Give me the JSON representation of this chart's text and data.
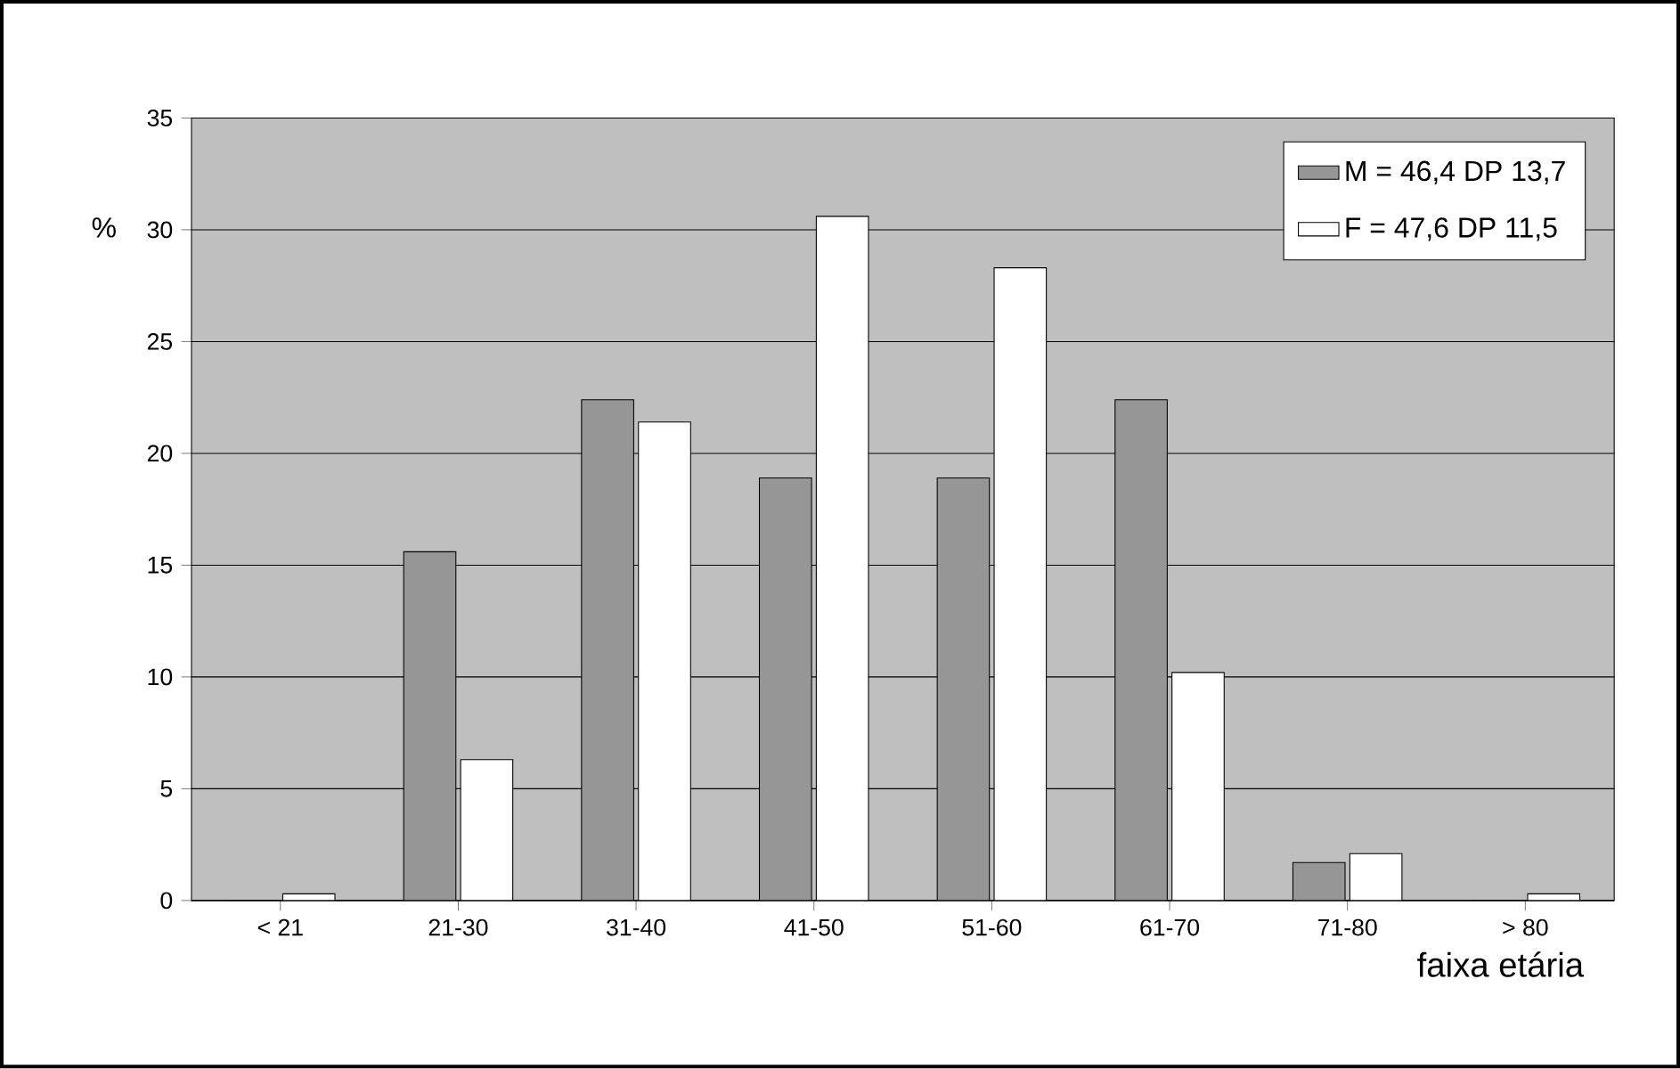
{
  "chart_data": {
    "type": "bar",
    "xlabel": "faixa etária",
    "ylabel": "%",
    "categories": [
      "< 21",
      "21-30",
      "31-40",
      "41-50",
      "51-60",
      "61-70",
      "71-80",
      "> 80"
    ],
    "series": [
      {
        "name": "M = 46,4 DP 13,7",
        "color": "#969696",
        "values": [
          0,
          15.6,
          22.4,
          18.9,
          18.9,
          22.4,
          1.7,
          0
        ]
      },
      {
        "name": "F = 47,6 DP 11,5",
        "color": "#ffffff",
        "values": [
          0.3,
          6.3,
          21.4,
          30.6,
          28.3,
          10.2,
          2.1,
          0.3
        ]
      }
    ],
    "ylim": [
      0,
      35
    ],
    "yticks": [
      0,
      5,
      10,
      15,
      20,
      25,
      30,
      35
    ],
    "grid": "y",
    "legend": "top right"
  }
}
